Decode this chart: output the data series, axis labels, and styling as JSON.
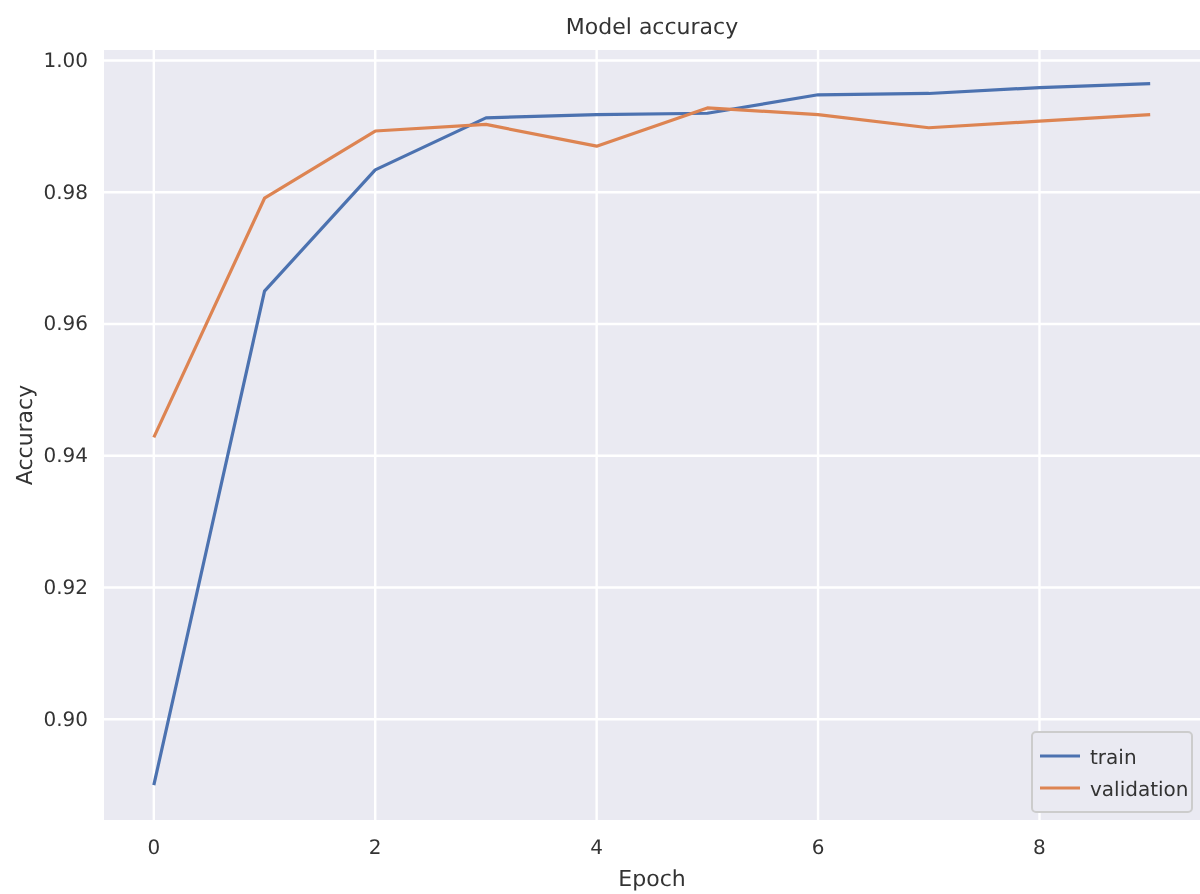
{
  "chart_data": {
    "type": "line",
    "title": "Model accuracy",
    "xlabel": "Epoch",
    "ylabel": "Accuracy",
    "x": [
      0,
      1,
      2,
      3,
      4,
      5,
      6,
      7,
      8,
      9
    ],
    "series": [
      {
        "name": "train",
        "color": "#4c72b0",
        "values": [
          0.89,
          0.965,
          0.9834,
          0.9913,
          0.9918,
          0.992,
          0.9948,
          0.995,
          0.9959,
          0.9965
        ]
      },
      {
        "name": "validation",
        "color": "#dd8452",
        "values": [
          0.9428,
          0.9791,
          0.9893,
          0.9903,
          0.987,
          0.9928,
          0.9918,
          0.9898,
          0.9908,
          0.9918
        ]
      }
    ],
    "xlim": [
      -0.45,
      9.45
    ],
    "ylim": [
      0.8847,
      1.0016
    ],
    "xticks": [
      0,
      2,
      4,
      6,
      8
    ],
    "yticks": [
      {
        "value": 0.9,
        "label": "0.90"
      },
      {
        "value": 0.92,
        "label": "0.92"
      },
      {
        "value": 0.94,
        "label": "0.94"
      },
      {
        "value": 0.96,
        "label": "0.96"
      },
      {
        "value": 0.98,
        "label": "0.98"
      },
      {
        "value": 1.0,
        "label": "1.00"
      }
    ],
    "grid": true,
    "legend": "bottom right",
    "marker": "none",
    "line_style": "solid"
  }
}
